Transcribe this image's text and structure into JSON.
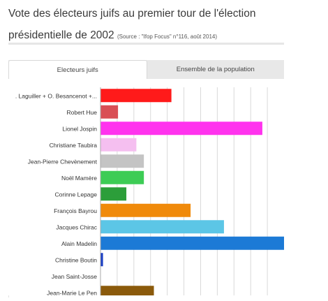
{
  "header": {
    "title_line1": "Vote des électeurs juifs au premier tour de l'élection",
    "title_line2": "présidentielle de 2002",
    "source": "(Source : \"Ifop Focus\" n°116, août 2014)"
  },
  "tabs": [
    {
      "label": "Electeurs juifs",
      "active": true
    },
    {
      "label": "Ensemble de la population",
      "active": false
    }
  ],
  "chart_data": {
    "type": "bar",
    "orientation": "horizontal",
    "categories": [
      ". Laguiller + O. Besancenot +...",
      "Robert Hue",
      "Lionel Jospin",
      "Christiane Taubira",
      "Jean-Pierre Chevènement",
      "Noël Mamère",
      "Corinne Lepage",
      "François Bayrou",
      "Jacques Chirac",
      "Alain Madelin",
      "Christine Boutin",
      "Jean Saint-Josse",
      "Jean-Marie Le Pen"
    ],
    "values": [
      8.5,
      2.1,
      19.4,
      4.3,
      5.2,
      5.2,
      3.1,
      10.8,
      14.8,
      22,
      0.3,
      0,
      6.4
    ],
    "colors": [
      "#ff1a1a",
      "#d94f55",
      "#ff33ee",
      "#f5bff0",
      "#c4c4c4",
      "#3dcc55",
      "#2c9e3a",
      "#f08a0a",
      "#5cc6e6",
      "#1c7ad6",
      "#1a3fc4",
      "#888888",
      "#8b5a0b"
    ],
    "x_ticks": [
      0,
      2,
      4,
      6,
      8,
      10,
      12,
      14,
      16,
      18,
      20
    ],
    "xlim": [
      0,
      22
    ],
    "grid": true,
    "title": "",
    "xlabel": "",
    "ylabel": ""
  }
}
